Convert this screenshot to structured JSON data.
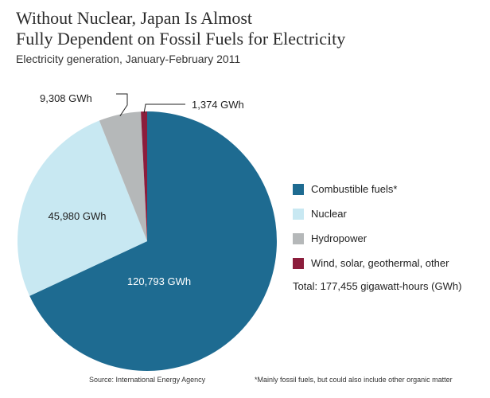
{
  "title_line1": "Without Nuclear, Japan Is Almost",
  "title_line2": "Fully Dependent on Fossil Fuels for Electricity",
  "subtitle": "Electricity generation, January-February 2011",
  "total_text": "Total: 177,455 gigawatt-hours (GWh)",
  "source": "Source:  International Energy Agency",
  "footnote": "*Mainly fossil fuels, but could also include other organic matter",
  "chart_data": {
    "type": "pie",
    "title": "Without Nuclear, Japan Is Almost Fully Dependent on Fossil Fuels for Electricity",
    "subtitle": "Electricity generation, January-February 2011",
    "unit": "GWh",
    "total": 177455,
    "legend_position": "right",
    "slices": [
      {
        "label": "Combustible fuels*",
        "value": 120793,
        "value_label": "120,793 GWh",
        "color": "#1e6b91"
      },
      {
        "label": "Nuclear",
        "value": 45980,
        "value_label": "45,980 GWh",
        "color": "#c8e8f2"
      },
      {
        "label": "Hydropower",
        "value": 9308,
        "value_label": "9,308 GWh",
        "color": "#b5b8b9"
      },
      {
        "label": "Wind, solar, geothermal, other",
        "value": 1374,
        "value_label": "1,374 GWh",
        "color": "#8c1d3c"
      }
    ]
  }
}
